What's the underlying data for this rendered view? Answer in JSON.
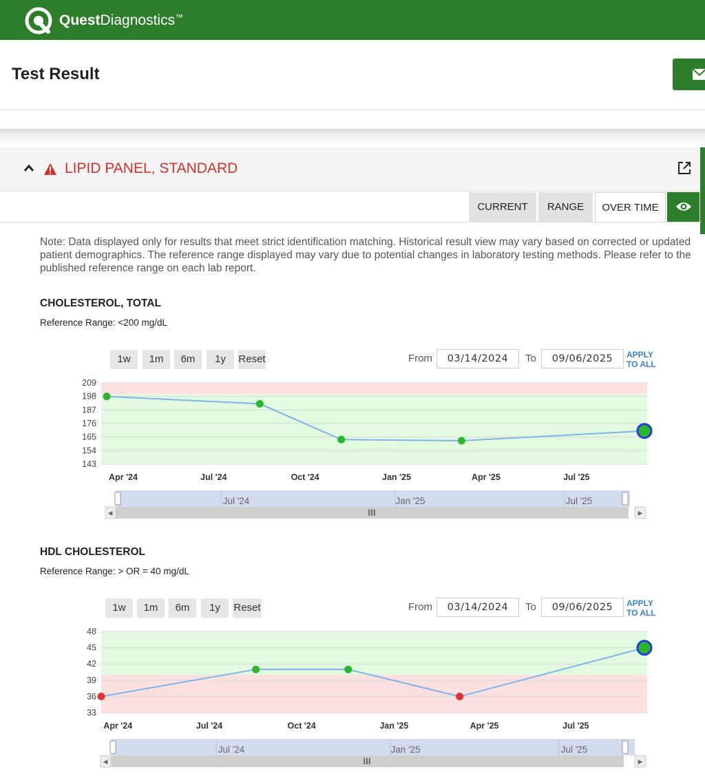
{
  "brand": {
    "name_bold": "Quest",
    "name_light": "Diagnostics",
    "tm": "™",
    "color": "#2e7d2a"
  },
  "page_title": "Test Result",
  "panel": {
    "title": "LIPID PANEL, STANDARD",
    "title_color": "#d32f2f"
  },
  "tabs": [
    {
      "label": "CURRENT"
    },
    {
      "label": "RANGE"
    },
    {
      "label": "OVER TIME"
    }
  ],
  "note": "Note: Data displayed only for results that meet strict identification matching. Historical result view may vary based on corrected or updated patient demographics. The reference range displayed may vary due to potential changes in laboratory testing methods. Please refer to the published reference range on each lab report.",
  "controls": {
    "zoom_buttons": [
      "1w",
      "1m",
      "6m",
      "1y",
      "Reset"
    ],
    "from_label": "From",
    "to_label": "To",
    "from_date": "03/14/2024",
    "to_date": "09/06/2025",
    "apply_line1": "APPLY",
    "apply_line2": "TO ALL"
  },
  "colors": {
    "normal_band": "#e2fbe0",
    "abnormal_band": "#fde1e1",
    "line": "#7fb2ea",
    "normal_point": "#2db52d",
    "abnormal_point": "#e03131",
    "latest_ring": "#1f3fd6"
  },
  "tests": [
    {
      "name": "CHOLESTEROL, TOTAL",
      "reference": "Reference Range: <200 mg/dL",
      "navigator_labels": [
        "Jul '24",
        "Jan '25",
        "Jul '25"
      ],
      "navigator_grip": "III"
    },
    {
      "name": "HDL CHOLESTEROL",
      "reference": "Reference Range: > OR = 40 mg/dL",
      "navigator_labels": [
        "Jul '24",
        "Jan '25",
        "Jul '25"
      ],
      "navigator_grip": "III"
    }
  ],
  "chart_data": [
    {
      "type": "line",
      "title": "CHOLESTEROL, TOTAL",
      "x": [
        "2024-03-14",
        "2024-08-15",
        "2024-11-05",
        "2025-03-06",
        "2025-09-06"
      ],
      "values": [
        198,
        192,
        163,
        162,
        170
      ],
      "status": [
        "normal",
        "normal",
        "normal",
        "normal",
        "normal"
      ],
      "ylim": [
        143,
        209
      ],
      "yticks": [
        143,
        154,
        165,
        176,
        187,
        198,
        209
      ],
      "xticks": [
        {
          "label": "Apr '24",
          "date": "2024-04-01"
        },
        {
          "label": "Jul '24",
          "date": "2024-07-01"
        },
        {
          "label": "Oct '24",
          "date": "2024-10-01"
        },
        {
          "label": "Jan '25",
          "date": "2025-01-01"
        },
        {
          "label": "Apr '25",
          "date": "2025-04-01"
        },
        {
          "label": "Jul '25",
          "date": "2025-07-01"
        }
      ],
      "normal_band": [
        143,
        200
      ],
      "abnormal_band": [
        200,
        209
      ],
      "grid": true
    },
    {
      "type": "line",
      "title": "HDL CHOLESTEROL",
      "x": [
        "2024-03-14",
        "2024-08-15",
        "2024-11-15",
        "2025-03-06",
        "2025-09-06"
      ],
      "values": [
        36,
        41,
        41,
        36,
        45
      ],
      "status": [
        "abnormal",
        "normal",
        "normal",
        "abnormal",
        "normal"
      ],
      "ylim": [
        33,
        48
      ],
      "yticks": [
        33,
        36,
        39,
        42,
        45,
        48
      ],
      "xticks": [
        {
          "label": "Apr '24",
          "date": "2024-04-01"
        },
        {
          "label": "Jul '24",
          "date": "2024-07-01"
        },
        {
          "label": "Oct '24",
          "date": "2024-10-01"
        },
        {
          "label": "Jan '25",
          "date": "2025-01-01"
        },
        {
          "label": "Apr '25",
          "date": "2025-04-01"
        },
        {
          "label": "Jul '25",
          "date": "2025-07-01"
        }
      ],
      "normal_band": [
        40,
        48
      ],
      "abnormal_band": [
        33,
        40
      ],
      "grid": true
    }
  ]
}
